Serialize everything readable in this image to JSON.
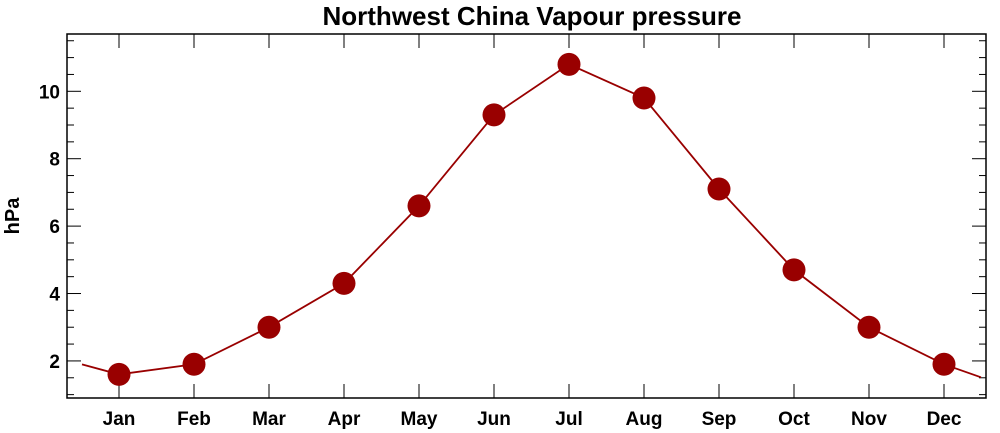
{
  "chart_data": {
    "type": "line",
    "title": "Northwest China Vapour pressure",
    "xlabel": "",
    "ylabel": "hPa",
    "categories": [
      "Jan",
      "Feb",
      "Mar",
      "Apr",
      "May",
      "Jun",
      "Jul",
      "Aug",
      "Sep",
      "Oct",
      "Nov",
      "Dec"
    ],
    "series": [
      {
        "values": [
          1.6,
          1.9,
          3.0,
          4.3,
          6.6,
          9.3,
          10.8,
          9.8,
          7.1,
          4.7,
          3.0,
          1.9
        ]
      }
    ],
    "y_ticks": [
      "2",
      "4",
      "6",
      "8",
      "10"
    ],
    "ylim": [
      0.9,
      11.7
    ],
    "line_color": "#990000",
    "marker_color": "#990000",
    "grid": false,
    "legend": "none"
  }
}
